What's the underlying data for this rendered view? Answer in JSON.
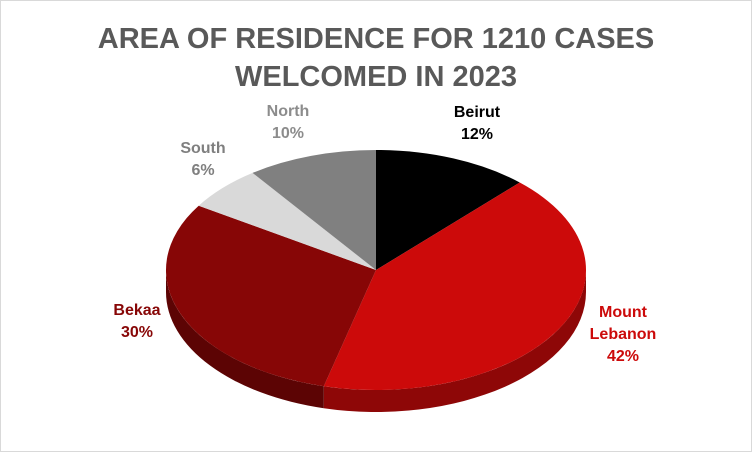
{
  "chart_data": {
    "type": "pie",
    "title_line1": "AREA OF RESIDENCE FOR 1210 CASES",
    "title_line2": "WELCOMED IN 2023",
    "slices": [
      {
        "label": "Beirut",
        "value": 12,
        "value_label": "12%",
        "color": "#000000",
        "side": "#000000",
        "label_color": "#000000"
      },
      {
        "label_line1": "Mount",
        "label_line2": "Lebanon",
        "value": 42,
        "value_label": "42%",
        "color": "#cc0a0a",
        "side": "#8e0707",
        "label_color": "#cc0a0a"
      },
      {
        "label": "Bekaa",
        "value": 30,
        "value_label": "30%",
        "color": "#870606",
        "side": "#5c0404",
        "label_color": "#870606"
      },
      {
        "label": "South",
        "value": 6,
        "value_label": "6%",
        "color": "#d9d9d9",
        "side": "#a6a6a6",
        "label_color": "#7f7f7f"
      },
      {
        "label": "North",
        "value": 10,
        "value_label": "10%",
        "color": "#808080",
        "side": "#5a5a5a",
        "label_color": "#8c8c8c"
      }
    ]
  }
}
